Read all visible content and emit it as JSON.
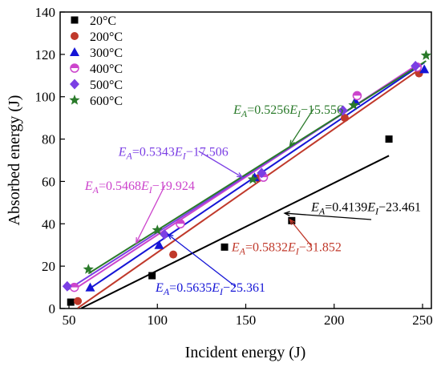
{
  "chart_data": {
    "type": "scatter",
    "title": "",
    "xlabel": "Incident energy (J)",
    "ylabel": "Absorbed energy (J)",
    "xlim": [
      45,
      255
    ],
    "ylim": [
      0,
      140
    ],
    "xticks": [
      50,
      100,
      150,
      200,
      250
    ],
    "yticks": [
      0,
      20,
      40,
      60,
      80,
      100,
      120,
      140
    ],
    "legend_position": "top-left",
    "series": [
      {
        "name": "20°C",
        "color": "#000000",
        "marker": "square",
        "points": [
          [
            51,
            3
          ],
          [
            97,
            15.5
          ],
          [
            138,
            29
          ],
          [
            176,
            41.5
          ],
          [
            231,
            80
          ]
        ],
        "fit": {
          "slope": 0.4139,
          "intercept": -23.461,
          "x_range": [
            57,
            231
          ]
        }
      },
      {
        "name": "200°C",
        "color": "#c0392b",
        "marker": "circle",
        "points": [
          [
            55,
            3.5
          ],
          [
            109,
            25.5
          ],
          [
            157,
            61.5
          ],
          [
            206,
            90
          ],
          [
            248,
            111
          ]
        ],
        "fit": {
          "slope": 0.5832,
          "intercept": -31.852,
          "x_range": [
            55,
            248
          ]
        }
      },
      {
        "name": "300°C",
        "color": "#1515d6",
        "marker": "triangle",
        "points": [
          [
            62,
            10
          ],
          [
            101,
            30
          ],
          [
            155,
            62
          ],
          [
            212,
            98
          ],
          [
            251,
            113
          ]
        ],
        "fit": {
          "slope": 0.5635,
          "intercept": -25.361,
          "x_range": [
            60,
            251
          ]
        }
      },
      {
        "name": "400°C",
        "color": "#cc44cc",
        "marker": "half-circle",
        "points": [
          [
            53,
            10
          ],
          [
            113,
            40
          ],
          [
            160,
            62
          ],
          [
            213,
            100.5
          ],
          [
            247,
            114
          ]
        ],
        "fit": {
          "slope": 0.5468,
          "intercept": -19.924,
          "x_range": [
            53,
            247
          ]
        }
      },
      {
        "name": "500°C",
        "color": "#7b3fe4",
        "marker": "diamond",
        "points": [
          [
            49,
            10.5
          ],
          [
            104,
            35
          ],
          [
            159,
            64
          ],
          [
            205,
            93.5
          ],
          [
            246,
            114.5
          ]
        ],
        "fit": {
          "slope": 0.5343,
          "intercept": -17.506,
          "x_range": [
            49,
            246
          ]
        }
      },
      {
        "name": "600°C",
        "color": "#2a7a2a",
        "marker": "star",
        "points": [
          [
            61,
            18.5
          ],
          [
            100,
            37
          ],
          [
            154,
            61
          ],
          [
            211,
            96
          ],
          [
            252,
            119.5
          ]
        ],
        "fit": {
          "slope": 0.5256,
          "intercept": -15.556,
          "x_range": [
            61,
            252
          ]
        }
      }
    ],
    "annotations": [
      {
        "id": "ann-600",
        "series": 5,
        "main": "E",
        "sub1": "A",
        "mid": "=0.5256",
        "main2": "E",
        "sub2": "I",
        "tail": "−15.556",
        "color": "#2a7a2a",
        "text_at": [
          143,
          92
        ],
        "arrow_to": [
          175,
          77
        ]
      },
      {
        "id": "ann-500",
        "series": 4,
        "main": "E",
        "sub1": "A",
        "mid": "=0.5343",
        "main2": "E",
        "sub2": "I",
        "tail": "−17.506",
        "color": "#7b3fe4",
        "text_at": [
          78,
          72
        ],
        "arrow_to": [
          148,
          62
        ]
      },
      {
        "id": "ann-400",
        "series": 3,
        "main": "E",
        "sub1": "A",
        "mid": "=0.5468",
        "main2": "E",
        "sub2": "I",
        "tail": "−19.924",
        "color": "#cc44cc",
        "text_at": [
          59,
          56
        ],
        "arrow_to": [
          88,
          31
        ]
      },
      {
        "id": "ann-20",
        "series": 0,
        "main": "E",
        "sub1": "A",
        "mid": "=0.4139",
        "main2": "E",
        "sub2": "I",
        "tail": "−23.461",
        "color": "#000000",
        "text_at": [
          187,
          46
        ],
        "arrow_to": [
          172,
          45
        ],
        "arrow_from": [
          221,
          42
        ]
      },
      {
        "id": "ann-200",
        "series": 1,
        "main": "E",
        "sub1": "A",
        "mid": "=0.5832",
        "main2": "E",
        "sub2": "I",
        "tail": "−31.852",
        "color": "#c0392b",
        "text_at": [
          142,
          27
        ],
        "arrow_to": [
          175,
          42
        ]
      },
      {
        "id": "ann-300",
        "series": 2,
        "main": "E",
        "sub1": "A",
        "mid": "=0.5635",
        "main2": "E",
        "sub2": "I",
        "tail": "−25.361",
        "color": "#1515d6",
        "text_at": [
          99,
          8
        ],
        "arrow_to": [
          106,
          35
        ]
      }
    ]
  }
}
